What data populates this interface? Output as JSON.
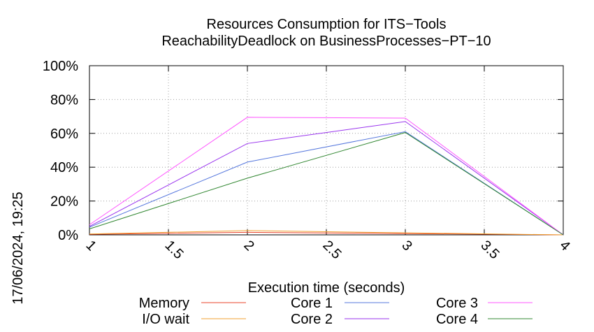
{
  "chart_data": {
    "type": "line",
    "title": "Resources Consumption for ITS−Tools",
    "subtitle": "ReachabilityDeadlock on BusinessProcesses−PT−10",
    "xlabel": "Execution time (seconds)",
    "ylabel": "",
    "timestamp": "17/06/2024, 19:25",
    "xlim": [
      1,
      4
    ],
    "ylim": [
      0,
      100
    ],
    "x_ticks": [
      1,
      1.5,
      2,
      2.5,
      3,
      3.5,
      4
    ],
    "x_tick_labels": [
      "1",
      "1.5",
      "2",
      "2.5",
      "3",
      "3.5",
      "4"
    ],
    "y_ticks": [
      0,
      20,
      40,
      60,
      80,
      100
    ],
    "y_tick_labels": [
      "0%",
      "20%",
      "40%",
      "60%",
      "80%",
      "100%"
    ],
    "grid": true,
    "legend_position": "bottom",
    "series": [
      {
        "name": "Memory",
        "color": "#e8412a",
        "x": [
          1,
          2,
          3,
          4
        ],
        "values": [
          0.3,
          1.5,
          0.8,
          0
        ]
      },
      {
        "name": "I/O wait",
        "color": "#f0a030",
        "x": [
          1,
          2,
          3,
          4
        ],
        "values": [
          0.5,
          2.5,
          1.2,
          0
        ]
      },
      {
        "name": "Core 1",
        "color": "#5577dd",
        "x": [
          1,
          2,
          3,
          4
        ],
        "values": [
          4.5,
          43,
          61,
          0
        ]
      },
      {
        "name": "Core 2",
        "color": "#9933ee",
        "x": [
          1,
          2,
          3,
          4
        ],
        "values": [
          5,
          54,
          67,
          0
        ]
      },
      {
        "name": "Core 3",
        "color": "#ff55ff",
        "x": [
          1,
          2,
          3,
          4
        ],
        "values": [
          6,
          69.5,
          69,
          0
        ]
      },
      {
        "name": "Core 4",
        "color": "#338833",
        "x": [
          1,
          2,
          3,
          4
        ],
        "values": [
          3.5,
          33.5,
          60.5,
          0
        ]
      }
    ]
  }
}
